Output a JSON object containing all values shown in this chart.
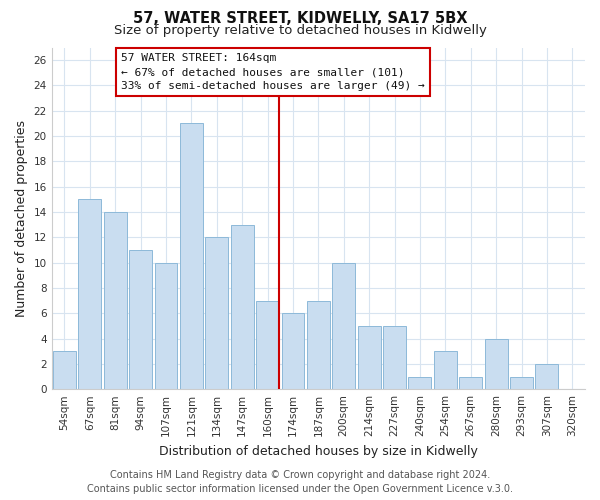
{
  "title": "57, WATER STREET, KIDWELLY, SA17 5BX",
  "subtitle": "Size of property relative to detached houses in Kidwelly",
  "xlabel": "Distribution of detached houses by size in Kidwelly",
  "ylabel": "Number of detached properties",
  "bar_labels": [
    "54sqm",
    "67sqm",
    "81sqm",
    "94sqm",
    "107sqm",
    "121sqm",
    "134sqm",
    "147sqm",
    "160sqm",
    "174sqm",
    "187sqm",
    "200sqm",
    "214sqm",
    "227sqm",
    "240sqm",
    "254sqm",
    "267sqm",
    "280sqm",
    "293sqm",
    "307sqm",
    "320sqm"
  ],
  "bar_values": [
    3,
    15,
    14,
    11,
    10,
    21,
    12,
    13,
    7,
    6,
    7,
    10,
    5,
    5,
    1,
    3,
    1,
    4,
    1,
    2,
    0
  ],
  "bar_color": "#c9ddf0",
  "bar_edgecolor": "#8db9d9",
  "reference_line_index": 8,
  "ylim": [
    0,
    27
  ],
  "yticks": [
    0,
    2,
    4,
    6,
    8,
    10,
    12,
    14,
    16,
    18,
    20,
    22,
    24,
    26
  ],
  "annotation_title": "57 WATER STREET: 164sqm",
  "annotation_line1": "← 67% of detached houses are smaller (101)",
  "annotation_line2": "33% of semi-detached houses are larger (49) →",
  "annotation_box_facecolor": "#ffffff",
  "annotation_box_edgecolor": "#cc0000",
  "footer1": "Contains HM Land Registry data © Crown copyright and database right 2024.",
  "footer2": "Contains public sector information licensed under the Open Government Licence v.3.0.",
  "title_fontsize": 10.5,
  "subtitle_fontsize": 9.5,
  "axis_label_fontsize": 9,
  "tick_fontsize": 7.5,
  "annotation_fontsize": 8,
  "footer_fontsize": 7,
  "background_color": "#ffffff",
  "grid_color": "#d8e4f0"
}
